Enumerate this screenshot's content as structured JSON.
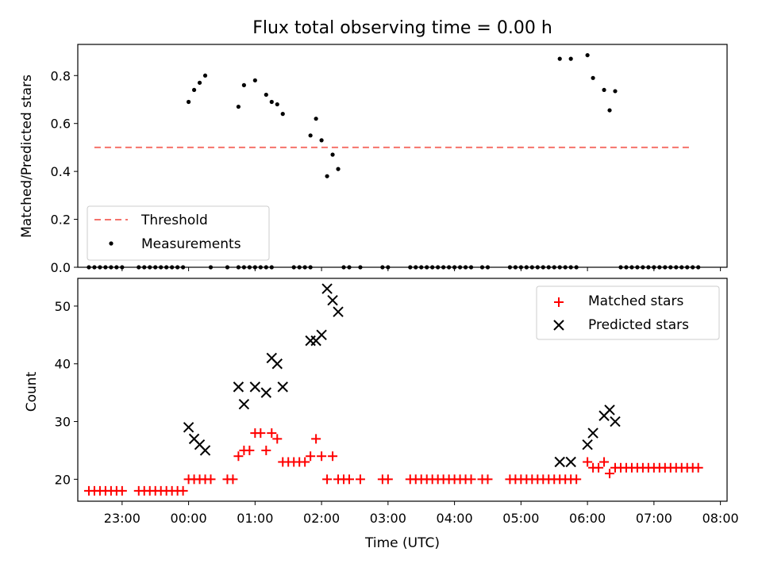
{
  "chart_data": [
    {
      "type": "scatter",
      "title": "Flux total observing time = 0.00 h",
      "xlabel": "",
      "ylabel": "Matched/Predicted stars",
      "xlim": [
        "22:20",
        "08:06"
      ],
      "ylim": [
        0,
        0.93
      ],
      "x_ticks": [
        "23:00",
        "00:00",
        "01:00",
        "02:00",
        "03:00",
        "04:00",
        "05:00",
        "06:00",
        "07:00",
        "08:00"
      ],
      "y_ticks": [
        "0.0",
        "0.2",
        "0.4",
        "0.6",
        "0.8"
      ],
      "grid": false,
      "legend_position": "lower left",
      "series": [
        {
          "name": "Threshold",
          "kind": "dashed-line",
          "color": "#f5736b",
          "x": [
            "22:35",
            "07:35"
          ],
          "y": [
            0.5,
            0.5
          ]
        },
        {
          "name": "Measurements",
          "kind": "points",
          "color": "#000000",
          "x": [
            "22:30",
            "22:35",
            "22:40",
            "22:45",
            "22:50",
            "22:55",
            "23:00",
            "23:15",
            "23:20",
            "23:25",
            "23:30",
            "23:35",
            "23:40",
            "23:45",
            "23:50",
            "23:55",
            "00:00",
            "00:05",
            "00:10",
            "00:15",
            "00:20",
            "00:35",
            "00:45",
            "00:50",
            "00:55",
            "00:45",
            "00:50",
            "01:00",
            "01:00",
            "01:05",
            "01:10",
            "01:15",
            "01:10",
            "01:15",
            "01:20",
            "01:25",
            "01:35",
            "01:40",
            "01:45",
            "01:50",
            "01:50",
            "01:55",
            "02:00",
            "02:05",
            "02:10",
            "02:15",
            "02:20",
            "02:25",
            "02:35",
            "02:55",
            "03:00",
            "03:20",
            "03:25",
            "03:30",
            "03:35",
            "03:40",
            "03:45",
            "03:50",
            "03:55",
            "04:00",
            "04:05",
            "04:10",
            "04:15",
            "04:25",
            "04:30",
            "04:50",
            "04:55",
            "05:00",
            "05:05",
            "05:10",
            "05:15",
            "05:20",
            "05:25",
            "05:30",
            "05:35",
            "05:40",
            "05:45",
            "05:50",
            "05:35",
            "05:45",
            "06:00",
            "06:05",
            "06:15",
            "06:20",
            "06:25",
            "06:30",
            "06:35",
            "06:40",
            "06:45",
            "06:50",
            "06:55",
            "07:00",
            "07:05",
            "07:10",
            "07:15",
            "07:20",
            "07:25",
            "07:30",
            "07:35",
            "07:40"
          ],
          "y": [
            0,
            0,
            0,
            0,
            0,
            0,
            0,
            0,
            0,
            0,
            0,
            0,
            0,
            0,
            0,
            0,
            0.69,
            0.74,
            0.77,
            0.8,
            0,
            0,
            0,
            0,
            0,
            0.67,
            0.76,
            0,
            0.78,
            0,
            0,
            0,
            0.72,
            0.69,
            0.68,
            0.64,
            0,
            0,
            0,
            0,
            0.55,
            0.62,
            0.53,
            0.38,
            0.47,
            0.41,
            0,
            0,
            0,
            0,
            0,
            0,
            0,
            0,
            0,
            0,
            0,
            0,
            0,
            0,
            0,
            0,
            0,
            0,
            0,
            0,
            0,
            0,
            0,
            0,
            0,
            0,
            0,
            0,
            0,
            0,
            0,
            0,
            0.87,
            0.87,
            0.885,
            0.79,
            0.74,
            0.655,
            0.735,
            0,
            0,
            0,
            0,
            0,
            0,
            0,
            0,
            0,
            0,
            0,
            0,
            0,
            0,
            0
          ]
        }
      ]
    },
    {
      "type": "scatter",
      "title": "",
      "xlabel": "Time (UTC)",
      "ylabel": "Count",
      "xlim": [
        "22:20",
        "08:06"
      ],
      "ylim": [
        16.2,
        54.8
      ],
      "x_ticks": [
        "23:00",
        "00:00",
        "01:00",
        "02:00",
        "03:00",
        "04:00",
        "05:00",
        "06:00",
        "07:00",
        "08:00"
      ],
      "y_ticks": [
        "20",
        "30",
        "40",
        "50"
      ],
      "grid": false,
      "legend_position": "upper right",
      "series": [
        {
          "name": "Matched stars",
          "kind": "plus",
          "color": "#ff0000",
          "x": [
            "22:30",
            "22:35",
            "22:40",
            "22:45",
            "22:50",
            "22:55",
            "23:00",
            "23:15",
            "23:20",
            "23:25",
            "23:30",
            "23:35",
            "23:40",
            "23:45",
            "23:50",
            "23:55",
            "00:00",
            "00:05",
            "00:10",
            "00:15",
            "00:20",
            "00:35",
            "00:40",
            "00:45",
            "00:50",
            "00:55",
            "01:00",
            "01:05",
            "01:10",
            "01:15",
            "01:20",
            "01:25",
            "01:30",
            "01:35",
            "01:40",
            "01:45",
            "01:50",
            "01:55",
            "02:00",
            "02:05",
            "02:10",
            "02:15",
            "02:20",
            "02:25",
            "02:35",
            "02:55",
            "03:00",
            "03:20",
            "03:25",
            "03:30",
            "03:35",
            "03:40",
            "03:45",
            "03:50",
            "03:55",
            "04:00",
            "04:05",
            "04:10",
            "04:15",
            "04:25",
            "04:30",
            "04:50",
            "04:55",
            "05:00",
            "05:05",
            "05:10",
            "05:15",
            "05:20",
            "05:25",
            "05:30",
            "05:35",
            "05:40",
            "05:45",
            "05:50",
            "06:00",
            "06:05",
            "06:10",
            "06:15",
            "06:20",
            "06:25",
            "06:30",
            "06:35",
            "06:40",
            "06:45",
            "06:50",
            "06:55",
            "07:00",
            "07:05",
            "07:10",
            "07:15",
            "07:20",
            "07:25",
            "07:30",
            "07:35",
            "07:40"
          ],
          "y": [
            18,
            18,
            18,
            18,
            18,
            18,
            18,
            18,
            18,
            18,
            18,
            18,
            18,
            18,
            18,
            18,
            20,
            20,
            20,
            20,
            20,
            20,
            20,
            24,
            25,
            25,
            28,
            28,
            25,
            28,
            27,
            23,
            23,
            23,
            23,
            23,
            24,
            27,
            24,
            20,
            24,
            20,
            20,
            20,
            20,
            20,
            20,
            20,
            20,
            20,
            20,
            20,
            20,
            20,
            20,
            20,
            20,
            20,
            20,
            20,
            20,
            20,
            20,
            20,
            20,
            20,
            20,
            20,
            20,
            20,
            20,
            20,
            20,
            20,
            23,
            22,
            22,
            23,
            21,
            22,
            22,
            22,
            22,
            22,
            22,
            22,
            22,
            22,
            22,
            22,
            22,
            22,
            22,
            22,
            22
          ]
        },
        {
          "name": "Predicted stars",
          "kind": "x",
          "color": "#000000",
          "x": [
            "00:00",
            "00:05",
            "00:10",
            "00:15",
            "00:45",
            "00:50",
            "01:00",
            "01:10",
            "01:15",
            "01:20",
            "01:25",
            "01:50",
            "01:55",
            "02:00",
            "02:05",
            "02:10",
            "02:15",
            "05:35",
            "05:45",
            "06:00",
            "06:05",
            "06:15",
            "06:20",
            "06:25"
          ],
          "y": [
            29,
            27,
            26,
            25,
            36,
            33,
            36,
            35,
            41,
            40,
            36,
            44,
            44,
            45,
            53,
            51,
            49,
            23,
            23,
            26,
            28,
            31,
            32,
            30
          ]
        }
      ]
    }
  ]
}
